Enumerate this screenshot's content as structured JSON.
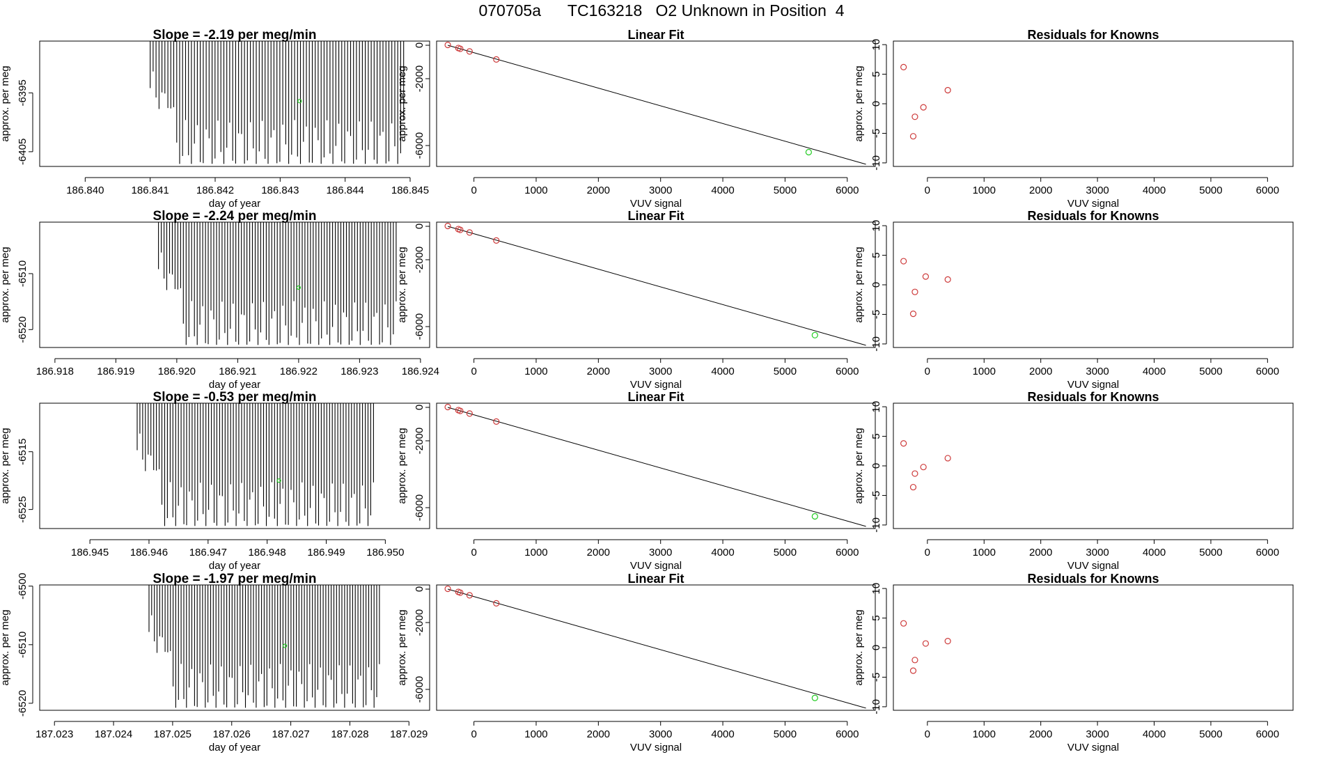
{
  "page_title": "070705a      TC163218   O2 Unknown in Position  4",
  "colors": {
    "known": "#cd3a3a",
    "unknown": "#22cc22",
    "line": "#000000"
  },
  "chart_data": [
    {
      "type": "line",
      "panel": "drift",
      "title": "Slope =  -2.19  per meg/min",
      "xlabel": "day of year",
      "ylabel": "approx. per meg",
      "xlim": [
        186.8393,
        186.8453
      ],
      "ylim": [
        -6407.5,
        -6386.2
      ],
      "xticks": [
        186.84,
        186.841,
        186.842,
        186.843,
        186.844,
        186.845
      ],
      "xtick_labels": [
        "186.840",
        "186.841",
        "186.842",
        "186.843",
        "186.844",
        "186.845"
      ],
      "yticks": [
        -6395,
        -6405
      ],
      "ytick_labels": [
        "-6395",
        "-6405"
      ],
      "trace_x_range": [
        186.841,
        186.8449
      ],
      "unknown_point": {
        "x": 186.8433,
        "y": -6396.4
      }
    },
    {
      "type": "scatter",
      "panel": "fit",
      "title": "Linear Fit",
      "xlabel": "VUV signal",
      "ylabel": "approx. per meg",
      "xlim": [
        -600,
        6450
      ],
      "ylim": [
        -7250,
        250
      ],
      "xticks": [
        0,
        1000,
        2000,
        3000,
        4000,
        5000,
        6000
      ],
      "xtick_labels": [
        "0",
        "1000",
        "2000",
        "3000",
        "4000",
        "5000",
        "6000"
      ],
      "yticks": [
        0,
        -2000,
        -6000
      ],
      "ytick_labels": [
        "0",
        "-2000",
        "-6000"
      ],
      "fit_line": {
        "x": [
          -420,
          6300
        ],
        "y": [
          0,
          -7120
        ]
      },
      "knowns": {
        "x": [
          -420,
          -250,
          -220,
          -70,
          360
        ],
        "y": [
          22,
          -165,
          -210,
          -370,
          -848
        ]
      },
      "unknown": {
        "x": 5380,
        "y": -6396
      }
    },
    {
      "type": "scatter",
      "panel": "residuals",
      "title": "Residuals for Knowns",
      "xlabel": "VUV signal",
      "ylabel": "approx. per meg",
      "xlim": [
        -600,
        6450
      ],
      "ylim": [
        -10.6,
        10.6
      ],
      "xticks": [
        0,
        1000,
        2000,
        3000,
        4000,
        5000,
        6000
      ],
      "xtick_labels": [
        "0",
        "1000",
        "2000",
        "3000",
        "4000",
        "5000",
        "6000"
      ],
      "yticks": [
        10,
        5,
        0,
        -5,
        -10
      ],
      "ytick_labels": [
        "10",
        "5",
        "0",
        "-5",
        "-10"
      ],
      "x": [
        -420,
        -250,
        -220,
        -70,
        360
      ],
      "y": [
        6.2,
        -5.5,
        -2.2,
        -0.6,
        2.3
      ]
    },
    {
      "type": "line",
      "panel": "drift",
      "title": "Slope =  -2.24  per meg/min",
      "xlabel": "day of year",
      "ylabel": "approx. per meg",
      "xlim": [
        186.91775,
        186.92415
      ],
      "ylim": [
        -6523.2,
        -6500.8
      ],
      "xticks": [
        186.918,
        186.919,
        186.92,
        186.921,
        186.922,
        186.923,
        186.924
      ],
      "xtick_labels": [
        "186.918",
        "186.919",
        "186.920",
        "186.921",
        "186.922",
        "186.923",
        "186.924"
      ],
      "yticks": [
        -6510,
        -6520
      ],
      "ytick_labels": [
        "-6510",
        "-6520"
      ],
      "trace_x_range": [
        186.9197,
        186.9236
      ],
      "unknown_point": {
        "x": 186.922,
        "y": -6512.5
      }
    },
    {
      "type": "scatter",
      "panel": "fit",
      "title": "Linear Fit",
      "xlabel": "VUV signal",
      "ylabel": "approx. per meg",
      "xlim": [
        -600,
        6450
      ],
      "ylim": [
        -7250,
        250
      ],
      "xticks": [
        0,
        1000,
        2000,
        3000,
        4000,
        5000,
        6000
      ],
      "xtick_labels": [
        "0",
        "1000",
        "2000",
        "3000",
        "4000",
        "5000",
        "6000"
      ],
      "yticks": [
        0,
        -2000,
        -6000
      ],
      "ytick_labels": [
        "0",
        "-2000",
        "-6000"
      ],
      "fit_line": {
        "x": [
          -420,
          6300
        ],
        "y": [
          0,
          -7120
        ]
      },
      "knowns": {
        "x": [
          -420,
          -250,
          -220,
          -70,
          360
        ],
        "y": [
          22,
          -165,
          -210,
          -370,
          -848
        ]
      },
      "unknown": {
        "x": 5480,
        "y": -6512
      }
    },
    {
      "type": "scatter",
      "panel": "residuals",
      "title": "Residuals for Knowns",
      "xlabel": "VUV signal",
      "ylabel": "approx. per meg",
      "xlim": [
        -600,
        6450
      ],
      "ylim": [
        -10.6,
        10.6
      ],
      "xticks": [
        0,
        1000,
        2000,
        3000,
        4000,
        5000,
        6000
      ],
      "xtick_labels": [
        "0",
        "1000",
        "2000",
        "3000",
        "4000",
        "5000",
        "6000"
      ],
      "yticks": [
        10,
        5,
        0,
        -5,
        -10
      ],
      "ytick_labels": [
        "10",
        "5",
        "0",
        "-5",
        "-10"
      ],
      "x": [
        -420,
        -250,
        -220,
        -30,
        360
      ],
      "y": [
        4.0,
        -4.9,
        -1.2,
        1.4,
        0.9
      ]
    },
    {
      "type": "line",
      "panel": "drift",
      "title": "Slope =  -0.53  per meg/min",
      "xlabel": "day of year",
      "ylabel": "approx. per meg",
      "xlim": [
        186.94415,
        186.95075
      ],
      "ylim": [
        -6528.3,
        -6506.6
      ],
      "xticks": [
        186.945,
        186.946,
        186.947,
        186.948,
        186.949,
        186.95
      ],
      "xtick_labels": [
        "186.945",
        "186.946",
        "186.947",
        "186.948",
        "186.949",
        "186.950"
      ],
      "yticks": [
        -6515,
        -6525
      ],
      "ytick_labels": [
        "-6515",
        "-6525"
      ],
      "trace_x_range": [
        186.9458,
        186.9498
      ],
      "unknown_point": {
        "x": 186.9482,
        "y": -6520.0
      }
    },
    {
      "type": "scatter",
      "panel": "fit",
      "title": "Linear Fit",
      "xlabel": "VUV signal",
      "ylabel": "approx. per meg",
      "xlim": [
        -600,
        6450
      ],
      "ylim": [
        -7250,
        250
      ],
      "xticks": [
        0,
        1000,
        2000,
        3000,
        4000,
        5000,
        6000
      ],
      "xtick_labels": [
        "0",
        "1000",
        "2000",
        "3000",
        "4000",
        "5000",
        "6000"
      ],
      "yticks": [
        0,
        -2000,
        -6000
      ],
      "ytick_labels": [
        "0",
        "-2000",
        "-6000"
      ],
      "fit_line": {
        "x": [
          -420,
          6300
        ],
        "y": [
          0,
          -7120
        ]
      },
      "knowns": {
        "x": [
          -420,
          -250,
          -220,
          -70,
          360
        ],
        "y": [
          22,
          -165,
          -210,
          -370,
          -848
        ]
      },
      "unknown": {
        "x": 5480,
        "y": -6520
      }
    },
    {
      "type": "scatter",
      "panel": "residuals",
      "title": "Residuals for Knowns",
      "xlabel": "VUV signal",
      "ylabel": "approx. per meg",
      "xlim": [
        -600,
        6450
      ],
      "ylim": [
        -10.6,
        10.6
      ],
      "xticks": [
        0,
        1000,
        2000,
        3000,
        4000,
        5000,
        6000
      ],
      "xtick_labels": [
        "0",
        "1000",
        "2000",
        "3000",
        "4000",
        "5000",
        "6000"
      ],
      "yticks": [
        10,
        5,
        0,
        -5,
        -10
      ],
      "ytick_labels": [
        "10",
        "5",
        "0",
        "-5",
        "-10"
      ],
      "x": [
        -420,
        -250,
        -220,
        -70,
        360
      ],
      "y": [
        3.8,
        -3.6,
        -1.3,
        -0.2,
        1.3
      ]
    },
    {
      "type": "line",
      "panel": "drift",
      "title": "Slope =  -1.97  per meg/min",
      "xlabel": "day of year",
      "ylabel": "approx. per meg",
      "xlim": [
        187.02275,
        187.02935
      ],
      "ylim": [
        -6521.2,
        -6499.8
      ],
      "xticks": [
        187.023,
        187.024,
        187.025,
        187.026,
        187.027,
        187.028,
        187.029
      ],
      "xtick_labels": [
        "187.023",
        "187.024",
        "187.025",
        "187.026",
        "187.027",
        "187.028",
        "187.029"
      ],
      "yticks": [
        -6500,
        -6510,
        -6520
      ],
      "ytick_labels": [
        "-6500",
        "-6510",
        "-6520"
      ],
      "trace_x_range": [
        187.0246,
        187.0285
      ],
      "unknown_point": {
        "x": 187.0269,
        "y": -6510.2
      }
    },
    {
      "type": "scatter",
      "panel": "fit",
      "title": "Linear Fit",
      "xlabel": "VUV signal",
      "ylabel": "approx. per meg",
      "xlim": [
        -600,
        6450
      ],
      "ylim": [
        -7250,
        250
      ],
      "xticks": [
        0,
        1000,
        2000,
        3000,
        4000,
        5000,
        6000
      ],
      "xtick_labels": [
        "0",
        "1000",
        "2000",
        "3000",
        "4000",
        "5000",
        "6000"
      ],
      "yticks": [
        0,
        -2000,
        -6000
      ],
      "ytick_labels": [
        "0",
        "-2000",
        "-6000"
      ],
      "fit_line": {
        "x": [
          -420,
          6300
        ],
        "y": [
          0,
          -7120
        ]
      },
      "knowns": {
        "x": [
          -420,
          -250,
          -220,
          -70,
          360
        ],
        "y": [
          22,
          -165,
          -210,
          -370,
          -848
        ]
      },
      "unknown": {
        "x": 5480,
        "y": -6510
      }
    },
    {
      "type": "scatter",
      "panel": "residuals",
      "title": "Residuals for Knowns",
      "xlabel": "VUV signal",
      "ylabel": "approx. per meg",
      "xlim": [
        -600,
        6450
      ],
      "ylim": [
        -10.6,
        10.6
      ],
      "xticks": [
        0,
        1000,
        2000,
        3000,
        4000,
        5000,
        6000
      ],
      "xtick_labels": [
        "0",
        "1000",
        "2000",
        "3000",
        "4000",
        "5000",
        "6000"
      ],
      "yticks": [
        10,
        5,
        0,
        -5,
        -10
      ],
      "ytick_labels": [
        "10",
        "5",
        "0",
        "-5",
        "-10"
      ],
      "x": [
        -420,
        -250,
        -220,
        -30,
        360
      ],
      "y": [
        4.1,
        -3.9,
        -2.1,
        0.7,
        1.1
      ]
    }
  ]
}
